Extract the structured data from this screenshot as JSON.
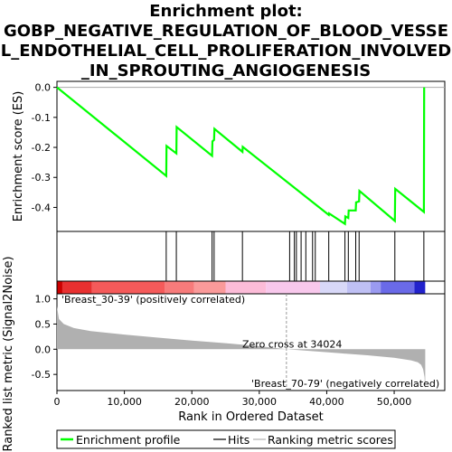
{
  "title_lines": [
    "Enrichment plot:",
    "GOBP_NEGATIVE_REGULATION_OF_BLOOD_VESSE",
    "L_ENDOTHELIAL_CELL_PROLIFERATION_INVOLVED",
    "_IN_SPROUTING_ANGIOGENESIS"
  ],
  "colors": {
    "es_line": "#00ff00",
    "hits": "#000000",
    "metric_fill": "#b0b0b0",
    "pos_label": "#cc0000",
    "neg_label": "#3333cc"
  },
  "chart_data": {
    "type": "line",
    "es_panel": {
      "ylabel": "Enrichment score (ES)",
      "ylim": [
        -0.48,
        0.02
      ],
      "yticks": [
        0.0,
        -0.1,
        -0.2,
        -0.3,
        -0.4
      ],
      "ytick_labels": [
        "0.0",
        "-0.1",
        "-0.2",
        "-0.3",
        "-0.4"
      ],
      "series": [
        {
          "name": "Enrichment profile",
          "x": [
            0,
            16200,
            16250,
            17700,
            17750,
            23000,
            23050,
            23300,
            23350,
            27500,
            27550,
            40300,
            40350,
            42700,
            42750,
            43200,
            43250,
            44300,
            44350,
            44800,
            44850,
            50100,
            50150,
            54400,
            54450
          ],
          "y": [
            0.0,
            -0.295,
            -0.195,
            -0.22,
            -0.132,
            -0.228,
            -0.18,
            -0.175,
            -0.138,
            -0.215,
            -0.198,
            -0.425,
            -0.42,
            -0.455,
            -0.43,
            -0.435,
            -0.41,
            -0.41,
            -0.383,
            -0.38,
            -0.345,
            -0.445,
            -0.338,
            -0.415,
            0.0
          ]
        }
      ]
    },
    "hits": [
      16200,
      17700,
      23000,
      23300,
      27500,
      34500,
      35200,
      35500,
      36200,
      36900,
      37900,
      38300,
      40300,
      42700,
      43200,
      44300,
      44800,
      50100,
      54400
    ],
    "heatmap_band": [
      {
        "from": 0,
        "to": 800,
        "color": "#cc0000"
      },
      {
        "from": 800,
        "to": 5200,
        "color": "#e83030"
      },
      {
        "from": 5200,
        "to": 16000,
        "color": "#f55a5a"
      },
      {
        "from": 16000,
        "to": 20300,
        "color": "#f77b7b"
      },
      {
        "from": 20300,
        "to": 25000,
        "color": "#fa9a9a"
      },
      {
        "from": 25000,
        "to": 31000,
        "color": "#fcbcd8"
      },
      {
        "from": 31000,
        "to": 39000,
        "color": "#f8c8ec"
      },
      {
        "from": 39000,
        "to": 43000,
        "color": "#d8d8f8"
      },
      {
        "from": 43000,
        "to": 46500,
        "color": "#bfc0f4"
      },
      {
        "from": 46500,
        "to": 48000,
        "color": "#9a9af0"
      },
      {
        "from": 48000,
        "to": 53000,
        "color": "#6a6ae8"
      },
      {
        "from": 53000,
        "to": 54600,
        "color": "#2222cc"
      }
    ],
    "metric_panel": {
      "ylabel": "Ranked list metric (Signal2Noise)",
      "ylim": [
        -0.82,
        1.1
      ],
      "yticks": [
        1.0,
        0.5,
        0.0,
        -0.5
      ],
      "ytick_labels": [
        "1.0",
        "0.5",
        "0.0",
        "-0.5"
      ],
      "x": [
        0,
        300,
        1000,
        2500,
        5000,
        10000,
        15000,
        20000,
        25000,
        30000,
        34024,
        38000,
        42000,
        46000,
        50000,
        52500,
        53500,
        54000,
        54300,
        54500,
        54600
      ],
      "y": [
        0.85,
        0.6,
        0.5,
        0.42,
        0.36,
        0.29,
        0.23,
        0.17,
        0.12,
        0.06,
        0.0,
        -0.04,
        -0.08,
        -0.12,
        -0.17,
        -0.22,
        -0.26,
        -0.31,
        -0.4,
        -0.55,
        -0.8
      ],
      "zero_cross_label": "Zero cross at 34024",
      "zero_cross_x": 34024,
      "pos_label": "'Breast_30-39' (positively correlated)",
      "neg_label": "'Breast_70-79' (negatively correlated)"
    },
    "xaxis": {
      "xlabel": "Rank in Ordered Dataset",
      "xlim": [
        0,
        57500
      ],
      "xticks": [
        0,
        10000,
        20000,
        30000,
        40000,
        50000
      ],
      "xtick_labels": [
        "0",
        "10,000",
        "20,000",
        "30,000",
        "40,000",
        "50,000"
      ]
    },
    "legend": [
      {
        "label": "Enrichment profile",
        "kind": "es"
      },
      {
        "label": "Hits",
        "kind": "hits"
      },
      {
        "label": "Ranking metric scores",
        "kind": "metric"
      }
    ]
  }
}
